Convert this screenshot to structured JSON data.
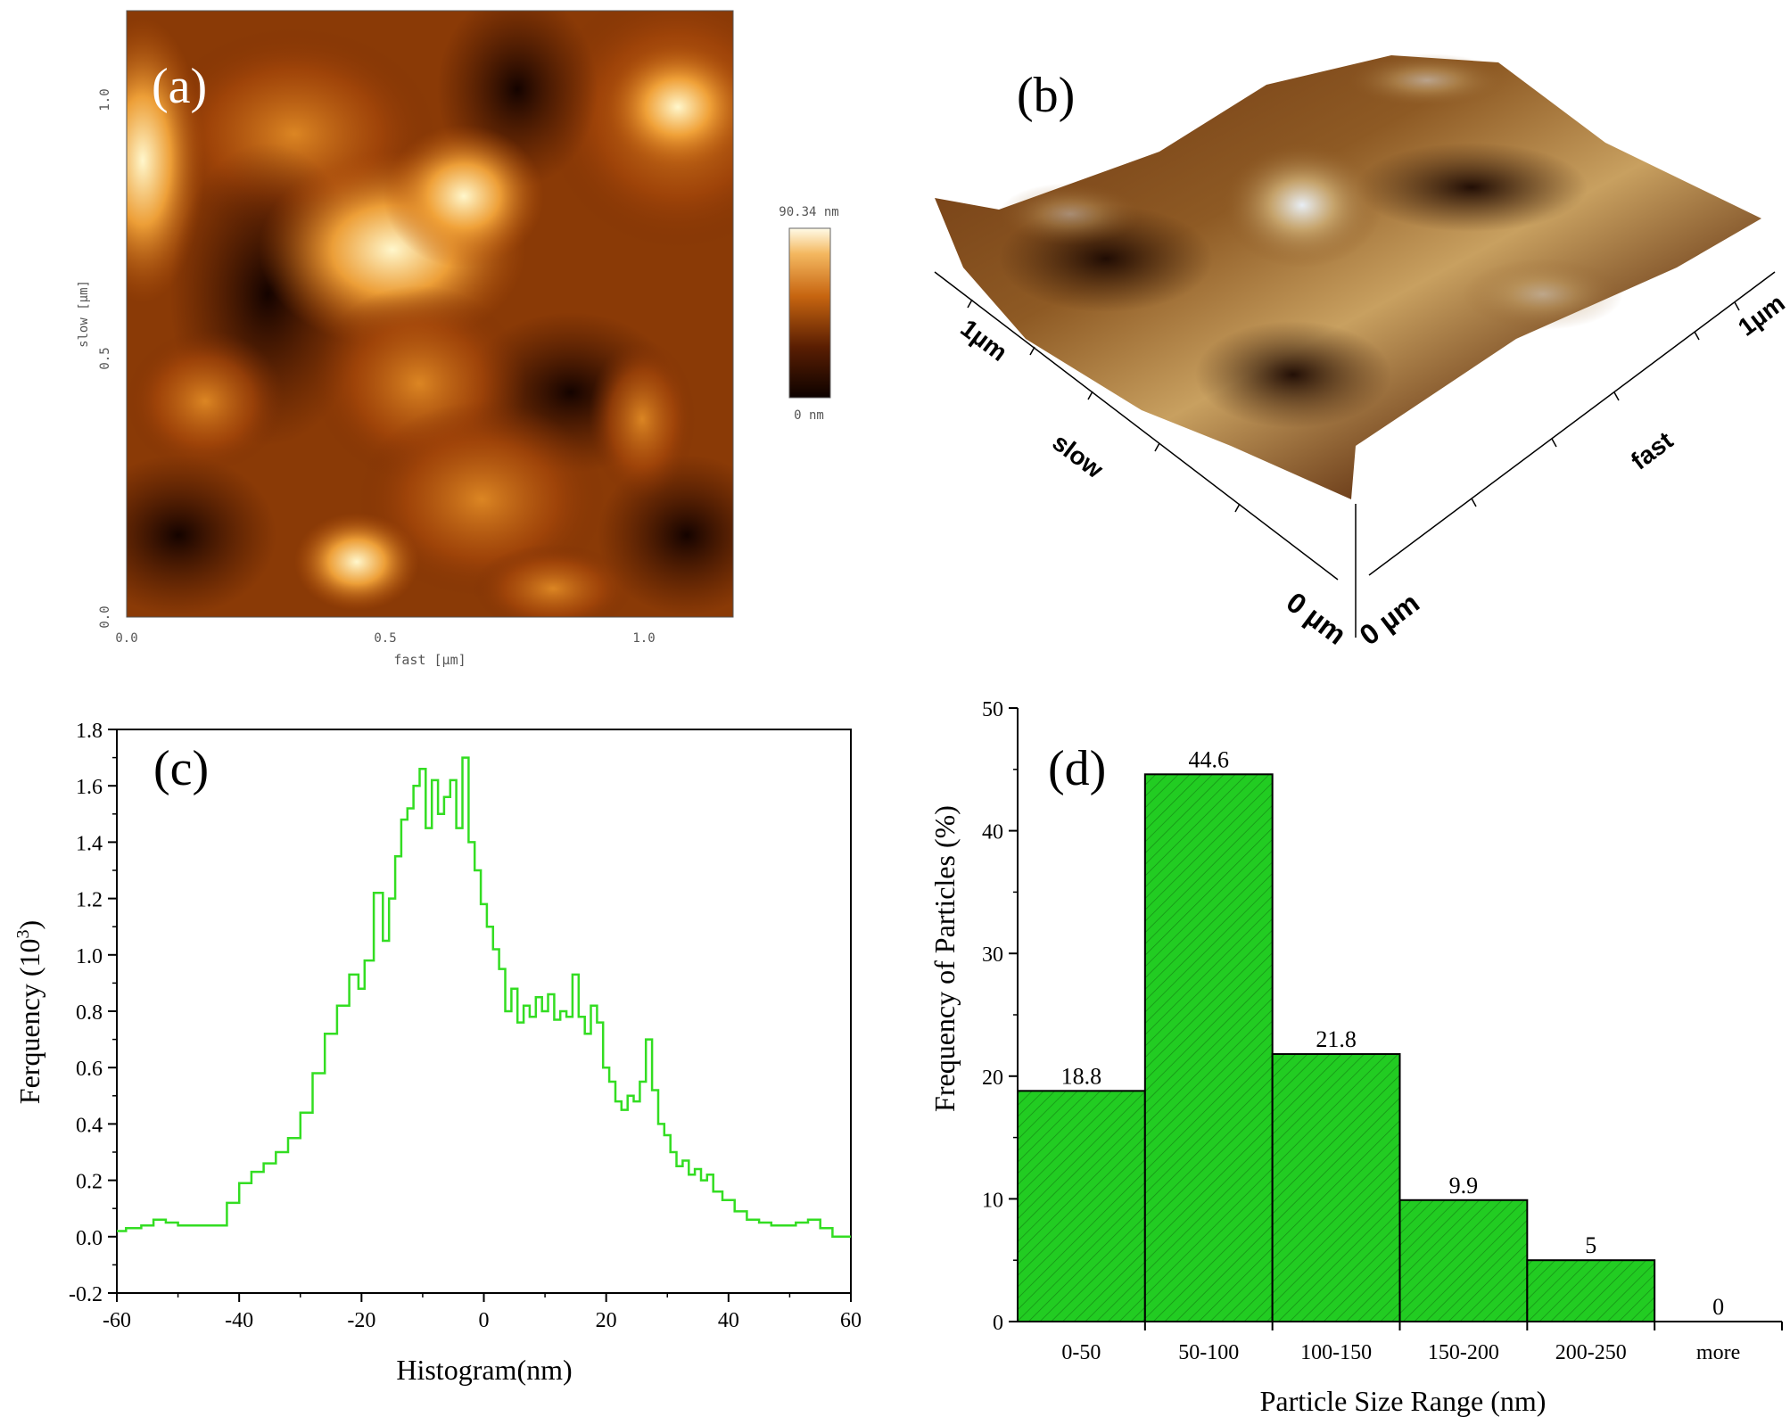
{
  "panels": {
    "a": {
      "label": "(a)",
      "x_axis_label": "fast [µm]",
      "y_axis_label": "slow [µm]",
      "x_ticks": [
        "0.0",
        "0.5",
        "1.0"
      ],
      "y_ticks": [
        "0.0",
        "0.5",
        "1.0"
      ],
      "colorbar_max": "90.34 nm",
      "colorbar_min": "0 nm",
      "colors": {
        "dark": "#1a0500",
        "mid": "#b5520a",
        "light": "#fff7cc"
      }
    },
    "b": {
      "label": "(b)",
      "slow_axis_label": "slow",
      "fast_axis_label": "fast",
      "slow_end": "1µm",
      "fast_end": "1µm",
      "slow_origin": "0 µm",
      "fast_origin": "0 µm"
    }
  },
  "chart_data": [
    {
      "panel": "c",
      "label": "(c)",
      "type": "line",
      "title": "",
      "xlabel": "Histogram(nm)",
      "ylabel": "Ferquency (10",
      "ylabel_superscript": "3",
      "ylabel_suffix": ")",
      "xlim": [
        -60,
        60
      ],
      "ylim": [
        -0.2,
        1.8
      ],
      "x_ticks": [
        "-60",
        "-40",
        "-20",
        "0",
        "20",
        "40",
        "60"
      ],
      "y_ticks": [
        "-0.2",
        "0.0",
        "0.2",
        "0.4",
        "0.6",
        "0.8",
        "1.0",
        "1.2",
        "1.4",
        "1.6",
        "1.8"
      ],
      "color": "#33dd22",
      "x": [
        -60,
        -57,
        -55,
        -53,
        -51,
        -49,
        -46,
        -43,
        -41,
        -39,
        -37,
        -35,
        -33,
        -31,
        -29,
        -27,
        -25,
        -23,
        -21,
        -20,
        -19,
        -17,
        -16,
        -15,
        -14,
        -13,
        -12,
        -11,
        -10,
        -9,
        -8,
        -7,
        -6,
        -5,
        -4,
        -3,
        -2,
        -1,
        0,
        1,
        2,
        3,
        4,
        5,
        6,
        7,
        8,
        9,
        10,
        11,
        12,
        13,
        14,
        15,
        16,
        17,
        18,
        19,
        20,
        21,
        22,
        23,
        24,
        25,
        26,
        27,
        28,
        29,
        30,
        31,
        32,
        33,
        34,
        35,
        36,
        37,
        38,
        40,
        42,
        44,
        46,
        48,
        50,
        52,
        54,
        56,
        58,
        60
      ],
      "y": [
        0.02,
        0.03,
        0.04,
        0.06,
        0.05,
        0.04,
        0.04,
        0.04,
        0.12,
        0.19,
        0.23,
        0.26,
        0.3,
        0.35,
        0.44,
        0.58,
        0.72,
        0.82,
        0.93,
        0.88,
        0.98,
        1.22,
        1.05,
        1.2,
        1.35,
        1.48,
        1.52,
        1.6,
        1.66,
        1.45,
        1.62,
        1.5,
        1.56,
        1.62,
        1.45,
        1.7,
        1.4,
        1.3,
        1.18,
        1.1,
        1.02,
        0.95,
        0.8,
        0.88,
        0.76,
        0.82,
        0.78,
        0.85,
        0.8,
        0.86,
        0.77,
        0.8,
        0.78,
        0.93,
        0.78,
        0.72,
        0.82,
        0.76,
        0.6,
        0.55,
        0.48,
        0.45,
        0.5,
        0.48,
        0.55,
        0.7,
        0.52,
        0.4,
        0.36,
        0.3,
        0.25,
        0.27,
        0.22,
        0.24,
        0.2,
        0.22,
        0.16,
        0.13,
        0.09,
        0.06,
        0.05,
        0.04,
        0.04,
        0.05,
        0.06,
        0.03,
        0.0,
        0.0
      ]
    },
    {
      "panel": "d",
      "label": "(d)",
      "type": "bar",
      "title": "",
      "xlabel": "Particle Size Range (nm)",
      "ylabel": "Frequency of Particles (%)",
      "ylim": [
        0,
        50
      ],
      "y_ticks": [
        "0",
        "10",
        "20",
        "30",
        "40",
        "50"
      ],
      "categories": [
        "0-50",
        "50-100",
        "100-150",
        "150-200",
        "200-250",
        "more"
      ],
      "values": [
        18.8,
        44.6,
        21.8,
        9.9,
        5,
        0
      ],
      "value_labels": [
        "18.8",
        "44.6",
        "21.8",
        "9.9",
        "5",
        "0"
      ],
      "bar_color": "#22cc22",
      "bar_color_dark": "#128a12"
    }
  ]
}
